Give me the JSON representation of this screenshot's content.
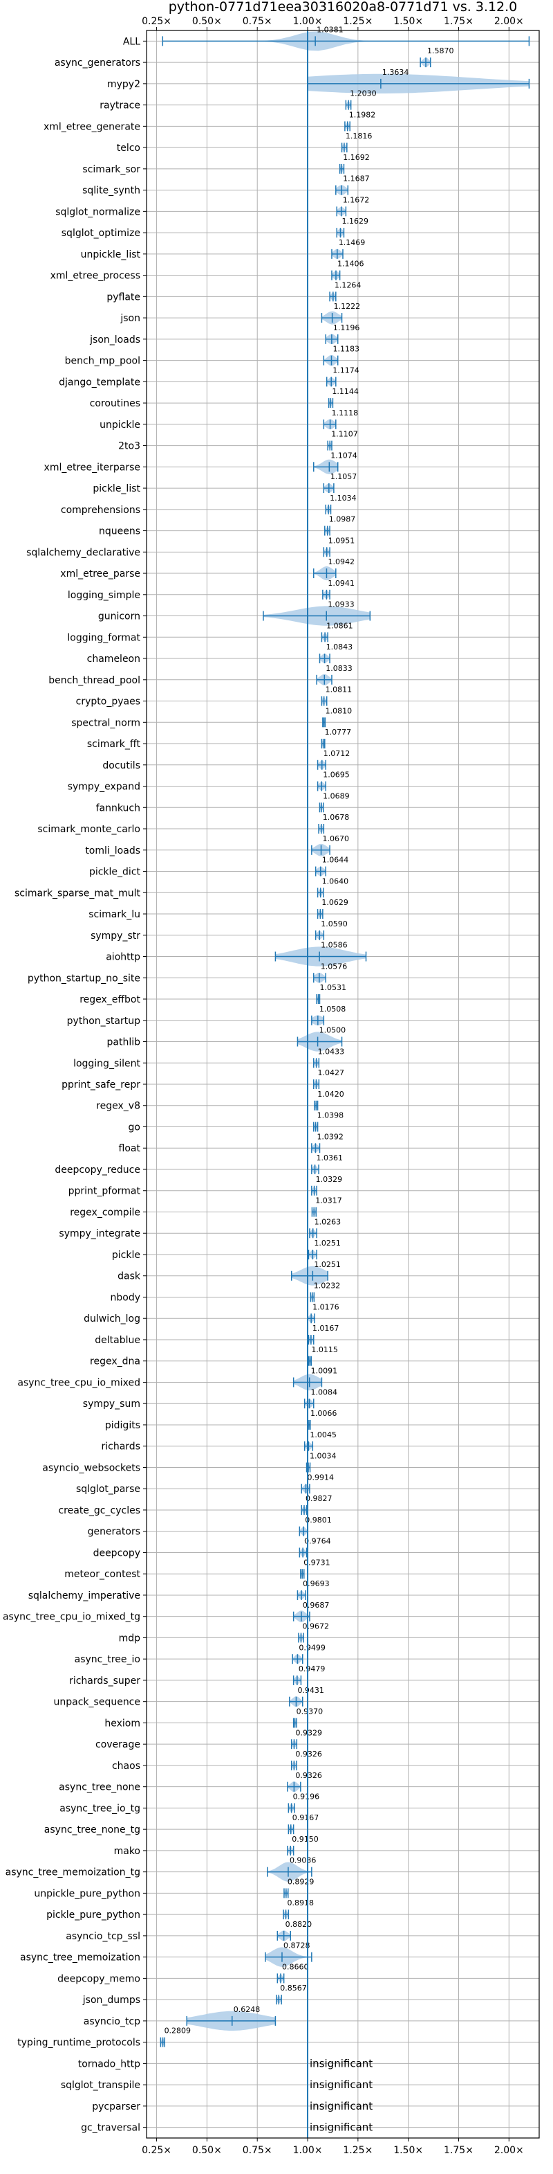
{
  "chart_data": {
    "type": "violin",
    "title": "python-0771d71eea30316020a8-0771d71 vs. 3.12.0",
    "xlabel": "",
    "ylabel": "",
    "xlim": [
      0.2,
      2.15
    ],
    "x_ticks": [
      0.25,
      0.5,
      0.75,
      1.0,
      1.25,
      1.5,
      1.75,
      2.0
    ],
    "x_tick_labels": [
      "0.25×",
      "0.50×",
      "0.75×",
      "1.00×",
      "1.25×",
      "1.50×",
      "1.75×",
      "2.00×"
    ],
    "reference_line": 1.0,
    "grid": true,
    "colors": {
      "accent": "#1f77b4",
      "violin": "#aecde8",
      "grid": "#b0b0b0"
    },
    "insignificant_label": "insignificant",
    "categories": [
      {
        "name": "ALL",
        "value": 1.0381,
        "label": "1.0381",
        "min": 0.28,
        "max": 2.1,
        "spread": 0.1
      },
      {
        "name": "async_generators",
        "value": 1.587,
        "label": "1.5870",
        "min": 1.56,
        "max": 1.61,
        "spread": 0.015
      },
      {
        "name": "mypy2",
        "value": 1.3634,
        "label": "1.3634",
        "min": 1.0,
        "max": 2.1,
        "spread": 0.45
      },
      {
        "name": "raytrace",
        "value": 1.203,
        "label": "1.2030",
        "min": 1.19,
        "max": 1.215,
        "spread": 0.008
      },
      {
        "name": "xml_etree_generate",
        "value": 1.1982,
        "label": "1.1982",
        "min": 1.185,
        "max": 1.21,
        "spread": 0.008
      },
      {
        "name": "telco",
        "value": 1.1816,
        "label": "1.1816",
        "min": 1.17,
        "max": 1.195,
        "spread": 0.008
      },
      {
        "name": "scimark_sor",
        "value": 1.1692,
        "label": "1.1692",
        "min": 1.16,
        "max": 1.18,
        "spread": 0.006
      },
      {
        "name": "sqlite_synth",
        "value": 1.1687,
        "label": "1.1687",
        "min": 1.14,
        "max": 1.2,
        "spread": 0.02
      },
      {
        "name": "sqlglot_normalize",
        "value": 1.1672,
        "label": "1.1672",
        "min": 1.145,
        "max": 1.19,
        "spread": 0.015
      },
      {
        "name": "sqlglot_optimize",
        "value": 1.1629,
        "label": "1.1629",
        "min": 1.145,
        "max": 1.18,
        "spread": 0.012
      },
      {
        "name": "unpickle_list",
        "value": 1.1469,
        "label": "1.1469",
        "min": 1.12,
        "max": 1.175,
        "spread": 0.018
      },
      {
        "name": "xml_etree_process",
        "value": 1.1406,
        "label": "1.1406",
        "min": 1.12,
        "max": 1.16,
        "spread": 0.014
      },
      {
        "name": "pyflate",
        "value": 1.1264,
        "label": "1.1264",
        "min": 1.11,
        "max": 1.14,
        "spread": 0.01
      },
      {
        "name": "json",
        "value": 1.1222,
        "label": "1.1222",
        "min": 1.07,
        "max": 1.17,
        "spread": 0.03
      },
      {
        "name": "json_loads",
        "value": 1.1196,
        "label": "1.1196",
        "min": 1.09,
        "max": 1.15,
        "spread": 0.02
      },
      {
        "name": "bench_mp_pool",
        "value": 1.1183,
        "label": "1.1183",
        "min": 1.08,
        "max": 1.15,
        "spread": 0.02
      },
      {
        "name": "django_template",
        "value": 1.1174,
        "label": "1.1174",
        "min": 1.095,
        "max": 1.14,
        "spread": 0.014
      },
      {
        "name": "coroutines",
        "value": 1.1144,
        "label": "1.1144",
        "min": 1.105,
        "max": 1.125,
        "spread": 0.006
      },
      {
        "name": "unpickle",
        "value": 1.1118,
        "label": "1.1118",
        "min": 1.08,
        "max": 1.14,
        "spread": 0.02
      },
      {
        "name": "2to3",
        "value": 1.1107,
        "label": "1.1107",
        "min": 1.1,
        "max": 1.12,
        "spread": 0.006
      },
      {
        "name": "xml_etree_iterparse",
        "value": 1.1074,
        "label": "1.1074",
        "min": 1.03,
        "max": 1.15,
        "spread": 0.035
      },
      {
        "name": "pickle_list",
        "value": 1.1057,
        "label": "1.1057",
        "min": 1.08,
        "max": 1.13,
        "spread": 0.016
      },
      {
        "name": "comprehensions",
        "value": 1.1034,
        "label": "1.1034",
        "min": 1.09,
        "max": 1.115,
        "spread": 0.008
      },
      {
        "name": "nqueens",
        "value": 1.0987,
        "label": "1.0987",
        "min": 1.085,
        "max": 1.11,
        "spread": 0.008
      },
      {
        "name": "sqlalchemy_declarative",
        "value": 1.0951,
        "label": "1.0951",
        "min": 1.08,
        "max": 1.11,
        "spread": 0.01
      },
      {
        "name": "xml_etree_parse",
        "value": 1.0942,
        "label": "1.0942",
        "min": 1.03,
        "max": 1.14,
        "spread": 0.03
      },
      {
        "name": "logging_simple",
        "value": 1.0941,
        "label": "1.0941",
        "min": 1.075,
        "max": 1.11,
        "spread": 0.012
      },
      {
        "name": "gunicorn",
        "value": 1.0933,
        "label": "1.0933",
        "min": 0.78,
        "max": 1.31,
        "spread": 0.15
      },
      {
        "name": "logging_format",
        "value": 1.0861,
        "label": "1.0861",
        "min": 1.07,
        "max": 1.1,
        "spread": 0.01
      },
      {
        "name": "chameleon",
        "value": 1.0843,
        "label": "1.0843",
        "min": 1.06,
        "max": 1.11,
        "spread": 0.016
      },
      {
        "name": "bench_thread_pool",
        "value": 1.0833,
        "label": "1.0833",
        "min": 1.045,
        "max": 1.12,
        "spread": 0.022
      },
      {
        "name": "crypto_pyaes",
        "value": 1.0811,
        "label": "1.0811",
        "min": 1.07,
        "max": 1.095,
        "spread": 0.008
      },
      {
        "name": "spectral_norm",
        "value": 1.081,
        "label": "1.0810",
        "min": 1.075,
        "max": 1.087,
        "spread": 0.004
      },
      {
        "name": "scimark_fft",
        "value": 1.0777,
        "label": "1.0777",
        "min": 1.07,
        "max": 1.085,
        "spread": 0.005
      },
      {
        "name": "docutils",
        "value": 1.0712,
        "label": "1.0712",
        "min": 1.05,
        "max": 1.09,
        "spread": 0.013
      },
      {
        "name": "sympy_expand",
        "value": 1.0695,
        "label": "1.0695",
        "min": 1.05,
        "max": 1.09,
        "spread": 0.013
      },
      {
        "name": "fannkuch",
        "value": 1.0689,
        "label": "1.0689",
        "min": 1.06,
        "max": 1.078,
        "spread": 0.005
      },
      {
        "name": "scimark_monte_carlo",
        "value": 1.0678,
        "label": "1.0678",
        "min": 1.055,
        "max": 1.08,
        "spread": 0.008
      },
      {
        "name": "tomli_loads",
        "value": 1.067,
        "label": "1.0670",
        "min": 1.02,
        "max": 1.11,
        "spread": 0.028
      },
      {
        "name": "pickle_dict",
        "value": 1.0644,
        "label": "1.0644",
        "min": 1.04,
        "max": 1.09,
        "spread": 0.016
      },
      {
        "name": "scimark_sparse_mat_mult",
        "value": 1.064,
        "label": "1.0640",
        "min": 1.05,
        "max": 1.078,
        "spread": 0.008
      },
      {
        "name": "scimark_lu",
        "value": 1.0629,
        "label": "1.0629",
        "min": 1.05,
        "max": 1.075,
        "spread": 0.008
      },
      {
        "name": "sympy_str",
        "value": 1.059,
        "label": "1.0590",
        "min": 1.04,
        "max": 1.08,
        "spread": 0.012
      },
      {
        "name": "aiohttp",
        "value": 1.0586,
        "label": "1.0586",
        "min": 0.84,
        "max": 1.29,
        "spread": 0.13
      },
      {
        "name": "python_startup_no_site",
        "value": 1.0576,
        "label": "1.0576",
        "min": 1.03,
        "max": 1.09,
        "spread": 0.02
      },
      {
        "name": "regex_effbot",
        "value": 1.0531,
        "label": "1.0531",
        "min": 1.045,
        "max": 1.06,
        "spread": 0.005
      },
      {
        "name": "python_startup",
        "value": 1.0508,
        "label": "1.0508",
        "min": 1.02,
        "max": 1.08,
        "spread": 0.025
      },
      {
        "name": "pathlib",
        "value": 1.05,
        "label": "1.0500",
        "min": 0.95,
        "max": 1.17,
        "spread": 0.06
      },
      {
        "name": "logging_silent",
        "value": 1.0433,
        "label": "1.0433",
        "min": 1.03,
        "max": 1.056,
        "spread": 0.008
      },
      {
        "name": "pprint_safe_repr",
        "value": 1.0427,
        "label": "1.0427",
        "min": 1.03,
        "max": 1.056,
        "spread": 0.008
      },
      {
        "name": "regex_v8",
        "value": 1.042,
        "label": "1.0420",
        "min": 1.034,
        "max": 1.05,
        "spread": 0.005
      },
      {
        "name": "go",
        "value": 1.0398,
        "label": "1.0398",
        "min": 1.03,
        "max": 1.05,
        "spread": 0.006
      },
      {
        "name": "float",
        "value": 1.0392,
        "label": "1.0392",
        "min": 1.02,
        "max": 1.06,
        "spread": 0.013
      },
      {
        "name": "deepcopy_reduce",
        "value": 1.0361,
        "label": "1.0361",
        "min": 1.02,
        "max": 1.055,
        "spread": 0.01
      },
      {
        "name": "pprint_pformat",
        "value": 1.0329,
        "label": "1.0329",
        "min": 1.02,
        "max": 1.045,
        "spread": 0.008
      },
      {
        "name": "regex_compile",
        "value": 1.0317,
        "label": "1.0317",
        "min": 1.022,
        "max": 1.042,
        "spread": 0.006
      },
      {
        "name": "sympy_integrate",
        "value": 1.0263,
        "label": "1.0263",
        "min": 1.01,
        "max": 1.045,
        "spread": 0.01
      },
      {
        "name": "pickle",
        "value": 1.0251,
        "label": "1.0251",
        "min": 1.005,
        "max": 1.045,
        "spread": 0.012
      },
      {
        "name": "dask",
        "value": 1.0251,
        "label": "1.0251",
        "min": 0.92,
        "max": 1.1,
        "spread": 0.06
      },
      {
        "name": "nbody",
        "value": 1.0232,
        "label": "1.0232",
        "min": 1.015,
        "max": 1.032,
        "spread": 0.005
      },
      {
        "name": "dulwich_log",
        "value": 1.0176,
        "label": "1.0176",
        "min": 1.0,
        "max": 1.035,
        "spread": 0.011
      },
      {
        "name": "deltablue",
        "value": 1.0167,
        "label": "1.0167",
        "min": 1.005,
        "max": 1.03,
        "spread": 0.008
      },
      {
        "name": "regex_dna",
        "value": 1.0115,
        "label": "1.0115",
        "min": 1.005,
        "max": 1.018,
        "spread": 0.004
      },
      {
        "name": "async_tree_cpu_io_mixed",
        "value": 1.0091,
        "label": "1.0091",
        "min": 0.93,
        "max": 1.07,
        "spread": 0.045
      },
      {
        "name": "sympy_sum",
        "value": 1.0084,
        "label": "1.0084",
        "min": 0.985,
        "max": 1.03,
        "spread": 0.013
      },
      {
        "name": "pidigits",
        "value": 1.0066,
        "label": "1.0066",
        "min": 1.0,
        "max": 1.013,
        "spread": 0.004
      },
      {
        "name": "richards",
        "value": 1.0045,
        "label": "1.0045",
        "min": 0.985,
        "max": 1.025,
        "spread": 0.012
      },
      {
        "name": "asyncio_websockets",
        "value": 1.0034,
        "label": "1.0034",
        "min": 0.995,
        "max": 1.012,
        "spread": 0.005
      },
      {
        "name": "sqlglot_parse",
        "value": 0.9914,
        "label": "0.9914",
        "min": 0.97,
        "max": 1.01,
        "spread": 0.012
      },
      {
        "name": "create_gc_cycles",
        "value": 0.9827,
        "label": "0.9827",
        "min": 0.97,
        "max": 0.995,
        "spread": 0.008
      },
      {
        "name": "generators",
        "value": 0.9801,
        "label": "0.9801",
        "min": 0.96,
        "max": 1.0,
        "spread": 0.012
      },
      {
        "name": "deepcopy",
        "value": 0.9764,
        "label": "0.9764",
        "min": 0.96,
        "max": 0.995,
        "spread": 0.01
      },
      {
        "name": "meteor_contest",
        "value": 0.9731,
        "label": "0.9731",
        "min": 0.965,
        "max": 0.982,
        "spread": 0.005
      },
      {
        "name": "sqlalchemy_imperative",
        "value": 0.9693,
        "label": "0.9693",
        "min": 0.95,
        "max": 0.99,
        "spread": 0.012
      },
      {
        "name": "async_tree_cpu_io_mixed_tg",
        "value": 0.9687,
        "label": "0.9687",
        "min": 0.93,
        "max": 1.01,
        "spread": 0.022
      },
      {
        "name": "mdp",
        "value": 0.9672,
        "label": "0.9672",
        "min": 0.955,
        "max": 0.98,
        "spread": 0.008
      },
      {
        "name": "async_tree_io",
        "value": 0.9499,
        "label": "0.9499",
        "min": 0.925,
        "max": 0.975,
        "spread": 0.014
      },
      {
        "name": "richards_super",
        "value": 0.9479,
        "label": "0.9479",
        "min": 0.93,
        "max": 0.967,
        "spread": 0.011
      },
      {
        "name": "unpack_sequence",
        "value": 0.9431,
        "label": "0.9431",
        "min": 0.91,
        "max": 0.975,
        "spread": 0.018
      },
      {
        "name": "hexiom",
        "value": 0.937,
        "label": "0.9370",
        "min": 0.93,
        "max": 0.945,
        "spread": 0.004
      },
      {
        "name": "coverage",
        "value": 0.9329,
        "label": "0.9329",
        "min": 0.92,
        "max": 0.946,
        "spread": 0.008
      },
      {
        "name": "chaos",
        "value": 0.9326,
        "label": "0.9326",
        "min": 0.92,
        "max": 0.945,
        "spread": 0.008
      },
      {
        "name": "async_tree_none",
        "value": 0.9326,
        "label": "0.9326",
        "min": 0.9,
        "max": 0.965,
        "spread": 0.018
      },
      {
        "name": "async_tree_io_tg",
        "value": 0.9196,
        "label": "0.9196",
        "min": 0.905,
        "max": 0.935,
        "spread": 0.009
      },
      {
        "name": "async_tree_none_tg",
        "value": 0.9167,
        "label": "0.9167",
        "min": 0.905,
        "max": 0.93,
        "spread": 0.008
      },
      {
        "name": "mako",
        "value": 0.915,
        "label": "0.9150",
        "min": 0.9,
        "max": 0.93,
        "spread": 0.009
      },
      {
        "name": "async_tree_memoization_tg",
        "value": 0.9036,
        "label": "0.9036",
        "min": 0.8,
        "max": 1.02,
        "spread": 0.045
      },
      {
        "name": "unpickle_pure_python",
        "value": 0.8929,
        "label": "0.8929",
        "min": 0.883,
        "max": 0.903,
        "spread": 0.006
      },
      {
        "name": "pickle_pure_python",
        "value": 0.8918,
        "label": "0.8918",
        "min": 0.88,
        "max": 0.905,
        "spread": 0.008
      },
      {
        "name": "asyncio_tcp_ssl",
        "value": 0.882,
        "label": "0.8820",
        "min": 0.85,
        "max": 0.915,
        "spread": 0.02
      },
      {
        "name": "async_tree_memoization",
        "value": 0.8728,
        "label": "0.8728",
        "min": 0.79,
        "max": 1.02,
        "spread": 0.05
      },
      {
        "name": "deepcopy_memo",
        "value": 0.866,
        "label": "0.8660",
        "min": 0.85,
        "max": 0.882,
        "spread": 0.009
      },
      {
        "name": "json_dumps",
        "value": 0.8567,
        "label": "0.8567",
        "min": 0.845,
        "max": 0.87,
        "spread": 0.008
      },
      {
        "name": "asyncio_tcp",
        "value": 0.6248,
        "label": "0.6248",
        "min": 0.4,
        "max": 0.84,
        "spread": 0.15
      },
      {
        "name": "typing_runtime_protocols",
        "value": 0.2809,
        "label": "0.2809",
        "min": 0.27,
        "max": 0.29,
        "spread": 0.006
      },
      {
        "name": "tornado_http",
        "value": null,
        "label": null,
        "min": null,
        "max": null,
        "spread": null
      },
      {
        "name": "sqlglot_transpile",
        "value": null,
        "label": null,
        "min": null,
        "max": null,
        "spread": null
      },
      {
        "name": "pycparser",
        "value": null,
        "label": null,
        "min": null,
        "max": null,
        "spread": null
      },
      {
        "name": "gc_traversal",
        "value": null,
        "label": null,
        "min": null,
        "max": null,
        "spread": null
      }
    ]
  }
}
